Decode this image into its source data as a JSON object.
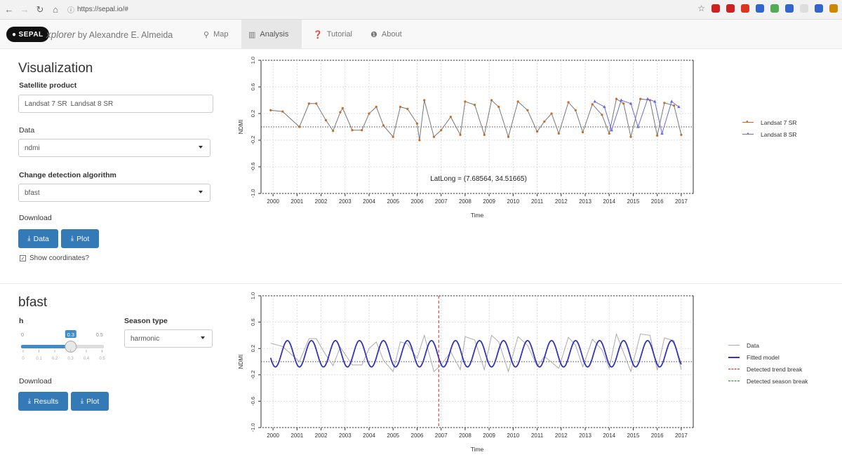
{
  "browser": {
    "url": "https://sepal.io/#",
    "ext_colors": [
      "#cc2222",
      "#cc2222",
      "#dd3322",
      "#3366cc",
      "#55aa55",
      "#3366cc",
      "#dddddd",
      "#3366cc",
      "#cc8800"
    ]
  },
  "nav": {
    "logo": "SEPAL",
    "brand_italic": "xplorer",
    "brand_rest": "by Alexandre E. Almeida",
    "items": [
      {
        "label": "Map",
        "icon": "pin-icon"
      },
      {
        "label": "Analysis",
        "icon": "bar-chart-icon"
      },
      {
        "label": "Tutorial",
        "icon": "question-icon"
      },
      {
        "label": "About",
        "icon": "info-icon"
      }
    ]
  },
  "visualization": {
    "title": "Visualization",
    "satellite_label": "Satellite product",
    "satellite_values": [
      "Landsat 7 SR",
      "Landsat 8 SR"
    ],
    "data_label": "Data",
    "data_value": "ndmi",
    "algorithm_label": "Change detection algorithm",
    "algorithm_value": "bfast",
    "download_label": "Download",
    "data_btn": "Data",
    "plot_btn": "Plot",
    "show_coords": "Show coordinates?"
  },
  "bfast": {
    "title": "bfast",
    "h_label": "h",
    "h_value": 0.3,
    "h_min": "0",
    "h_max": "0.5",
    "h_ticks": [
      "0",
      "0.1",
      "0.2",
      "0.3",
      "0.4",
      "0.5"
    ],
    "season_label": "Season type",
    "season_value": "harmonic",
    "download_label": "Download",
    "results_btn": "Results",
    "plot_btn": "Plot"
  },
  "chart_data": [
    {
      "type": "line",
      "xlabel": "Time",
      "ylabel": "NDMI",
      "xticks": [
        2000,
        2001,
        2002,
        2003,
        2004,
        2005,
        2006,
        2007,
        2008,
        2009,
        2010,
        2011,
        2012,
        2013,
        2014,
        2015,
        2016,
        2017
      ],
      "yticks": [
        "1.0",
        "0.6",
        "0.2",
        "-0.2",
        "-0.6",
        "-1.0"
      ],
      "ylim": [
        -1.0,
        1.0
      ],
      "xlim": [
        1999.5,
        2017.5
      ],
      "hline": 0,
      "annotation": "LatLong = (7.68564, 34.51665)",
      "legend": "right",
      "series": [
        {
          "name": "Landsat 7 SR",
          "color": "#d2691e",
          "marker": "dot",
          "x": [
            1999.9,
            2000.4,
            2001.1,
            2001.5,
            2001.8,
            2002.2,
            2002.5,
            2002.8,
            2002.9,
            2003.3,
            2003.7,
            2004.0,
            2004.3,
            2004.6,
            2005.0,
            2005.3,
            2005.6,
            2006.0,
            2006.1,
            2006.3,
            2006.7,
            2007.0,
            2007.4,
            2007.8,
            2008.0,
            2008.4,
            2008.8,
            2009.1,
            2009.4,
            2009.8,
            2010.2,
            2010.6,
            2011.0,
            2011.3,
            2011.6,
            2011.9,
            2012.3,
            2012.6,
            2012.9,
            2013.3,
            2013.7,
            2014.0,
            2014.3,
            2014.6,
            2014.9,
            2015.3,
            2015.7,
            2016.0,
            2016.3,
            2016.7,
            2017.0
          ],
          "y": [
            0.25,
            0.23,
            0.0,
            0.35,
            0.35,
            0.1,
            -0.06,
            0.22,
            0.28,
            -0.05,
            -0.05,
            0.2,
            0.3,
            0.02,
            -0.15,
            0.3,
            0.27,
            0.05,
            -0.2,
            0.4,
            -0.15,
            -0.05,
            0.15,
            -0.12,
            0.38,
            0.33,
            -0.12,
            0.4,
            0.3,
            -0.15,
            0.38,
            0.25,
            -0.07,
            0.08,
            0.2,
            -0.1,
            0.37,
            0.25,
            -0.08,
            0.34,
            0.18,
            -0.1,
            0.42,
            0.35,
            -0.15,
            0.42,
            0.4,
            -0.13,
            0.36,
            0.32,
            -0.12
          ]
        },
        {
          "name": "Landsat 8 SR",
          "color": "#6a6adf",
          "marker": "triangle",
          "x": [
            2013.4,
            2013.8,
            2014.1,
            2014.5,
            2014.9,
            2015.2,
            2015.6,
            2015.9,
            2016.2,
            2016.6,
            2016.9
          ],
          "y": [
            0.38,
            0.3,
            -0.05,
            0.4,
            0.35,
            0.0,
            0.42,
            0.38,
            -0.1,
            0.38,
            0.3
          ]
        }
      ]
    },
    {
      "type": "line",
      "xlabel": "Time",
      "ylabel": "NDMI",
      "xticks": [
        2000,
        2001,
        2002,
        2003,
        2004,
        2005,
        2006,
        2007,
        2008,
        2009,
        2010,
        2011,
        2012,
        2013,
        2014,
        2015,
        2016,
        2017
      ],
      "yticks": [
        "1.0",
        "0.6",
        "0.2",
        "-0.2",
        "-0.6",
        "-1.0"
      ],
      "ylim": [
        -1.0,
        1.0
      ],
      "xlim": [
        1999.5,
        2017.5
      ],
      "hline": 0,
      "trend_break_x": 2006.9,
      "legend": "right",
      "series": [
        {
          "name": "Data",
          "color": "#aaaaaa",
          "x": [
            1999.9,
            2000.4,
            2001.1,
            2001.5,
            2001.8,
            2002.2,
            2002.5,
            2002.8,
            2003.3,
            2003.7,
            2004.0,
            2004.3,
            2004.6,
            2005.0,
            2005.3,
            2005.6,
            2006.0,
            2006.3,
            2006.7,
            2007.0,
            2007.4,
            2007.8,
            2008.0,
            2008.4,
            2008.8,
            2009.1,
            2009.4,
            2009.8,
            2010.2,
            2010.6,
            2011.0,
            2011.3,
            2011.9,
            2012.3,
            2012.6,
            2012.9,
            2013.3,
            2013.7,
            2014.0,
            2014.3,
            2014.9,
            2015.3,
            2015.7,
            2016.0,
            2016.3,
            2016.7,
            2017.0
          ],
          "y": [
            0.28,
            0.23,
            0.0,
            0.35,
            0.35,
            0.1,
            -0.06,
            0.22,
            -0.05,
            -0.05,
            0.2,
            0.3,
            0.02,
            -0.15,
            0.3,
            0.27,
            0.05,
            0.4,
            -0.15,
            -0.05,
            0.15,
            -0.12,
            0.38,
            0.33,
            -0.12,
            0.4,
            0.3,
            -0.15,
            0.38,
            0.25,
            -0.07,
            0.08,
            -0.1,
            0.37,
            0.25,
            -0.08,
            0.34,
            0.18,
            -0.1,
            0.42,
            -0.15,
            0.42,
            0.4,
            -0.13,
            0.36,
            0.32,
            -0.12
          ]
        },
        {
          "name": "Fitted model",
          "color": "#3333bb",
          "amp": 0.2,
          "center": 0.12,
          "phase": 0.35,
          "x0": 1999.9,
          "x1": 2017.0
        }
      ],
      "legend_entries": [
        {
          "name": "Data",
          "color": "#aaaaaa",
          "style": "solid"
        },
        {
          "name": "Fitted model",
          "color": "#3333bb",
          "style": "solid"
        },
        {
          "name": "Detected trend break",
          "color": "#dd2222",
          "style": "dashed"
        },
        {
          "name": "Detected season break",
          "color": "#228822",
          "style": "dashed"
        }
      ]
    }
  ]
}
